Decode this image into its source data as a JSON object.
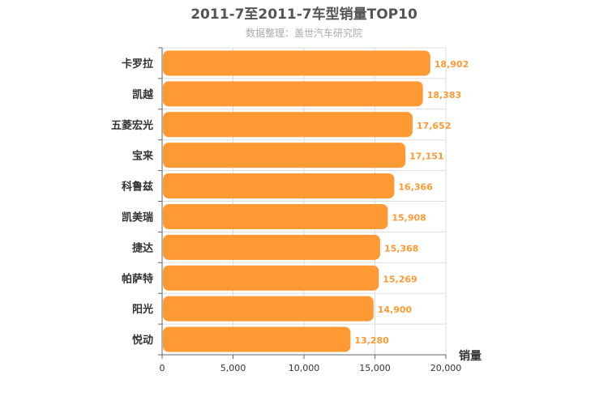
{
  "chart_data": {
    "type": "bar",
    "orientation": "horizontal",
    "title": "2011-7至2011-7车型销量TOP10",
    "subtitle": "数据整理：盖世汽车研究院",
    "xlabel": "销量",
    "ylabel": "",
    "categories": [
      "卡罗拉",
      "凯越",
      "五菱宏光",
      "宝来",
      "科鲁兹",
      "凯美瑞",
      "捷达",
      "帕萨特",
      "阳光",
      "悦动"
    ],
    "values": [
      18902,
      18383,
      17652,
      17151,
      16366,
      15908,
      15368,
      15269,
      14900,
      13280
    ],
    "value_labels": [
      "18,902",
      "18,383",
      "17,652",
      "17,151",
      "16,366",
      "15,908",
      "15,368",
      "15,269",
      "14,900",
      "13,280"
    ],
    "xlim": [
      0,
      20000
    ],
    "xticks": [
      0,
      5000,
      10000,
      15000,
      20000
    ],
    "xtick_labels": [
      "0",
      "5,000",
      "10,000",
      "15,000",
      "20,000"
    ],
    "grid": true,
    "legend": "none",
    "bar_color": "#ff9933",
    "grid_color": "#dddddd",
    "axis_color": "#666666"
  }
}
